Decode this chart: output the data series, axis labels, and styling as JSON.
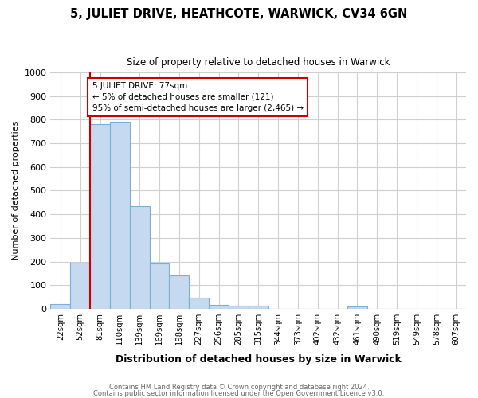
{
  "title": "5, JULIET DRIVE, HEATHCOTE, WARWICK, CV34 6GN",
  "subtitle": "Size of property relative to detached houses in Warwick",
  "xlabel": "Distribution of detached houses by size in Warwick",
  "ylabel": "Number of detached properties",
  "footer1": "Contains HM Land Registry data © Crown copyright and database right 2024.",
  "footer2": "Contains public sector information licensed under the Open Government Licence v3.0.",
  "categories": [
    "22sqm",
    "52sqm",
    "81sqm",
    "110sqm",
    "139sqm",
    "169sqm",
    "198sqm",
    "227sqm",
    "256sqm",
    "285sqm",
    "315sqm",
    "344sqm",
    "373sqm",
    "402sqm",
    "432sqm",
    "461sqm",
    "490sqm",
    "519sqm",
    "549sqm",
    "578sqm",
    "607sqm"
  ],
  "values": [
    20,
    195,
    780,
    790,
    435,
    193,
    143,
    48,
    18,
    13,
    13,
    0,
    0,
    0,
    0,
    10,
    0,
    0,
    0,
    0,
    0
  ],
  "bar_color": "#c5d9f0",
  "bar_edge_color": "#7bafd4",
  "grid_color": "#d0d0d0",
  "annotation_box_color": "#cc0000",
  "annotation_line1": "5 JULIET DRIVE: 77sqm",
  "annotation_line2": "← 5% of detached houses are smaller (121)",
  "annotation_line3": "95% of semi-detached houses are larger (2,465) →",
  "ylim": [
    0,
    1000
  ],
  "background_color": "#ffffff"
}
